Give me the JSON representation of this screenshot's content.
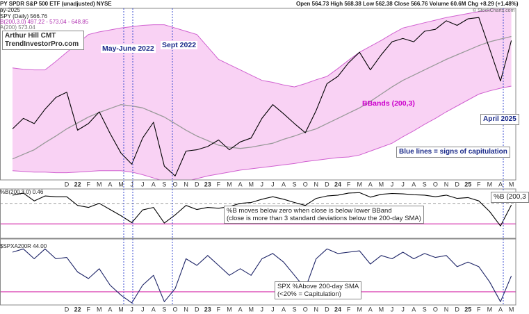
{
  "header": {
    "title": "PY SPDR S&P 500 ETF (unadjusted) NYSE",
    "date": "ay-2025",
    "quote": "Open 564.73 High 568.38 Low 562.38 Close 566.76 Volume 60.6M Chg +8.29 (+1.48%)",
    "credit": "© StockCharts.com"
  },
  "chart_data": [
    {
      "type": "line",
      "categories": [
        null,
        null,
        null,
        null,
        null,
        "D",
        "22",
        "F",
        "M",
        "A",
        "M",
        "J",
        "J",
        "A",
        "S",
        "O",
        "N",
        "D",
        "23",
        "F",
        "M",
        "A",
        "M",
        "J",
        "J",
        "A",
        "S",
        "O",
        "N",
        "D",
        "24",
        "F",
        "M",
        "A",
        "M",
        "J",
        "J",
        "A",
        "S",
        "O",
        "N",
        "D",
        "25",
        "F",
        "M",
        "A",
        "M"
      ],
      "ylim": [
        354,
        616
      ],
      "series": [
        {
          "name": "SPY (Daily) 566.76",
          "color": "#000000",
          "values": [
            432,
            448,
            440,
            462,
            480,
            488,
            430,
            440,
            458,
            425,
            395,
            378,
            418,
            442,
            375,
            360,
            398,
            400,
            405,
            415,
            400,
            412,
            418,
            448,
            469,
            455,
            440,
            426,
            460,
            501,
            512,
            533,
            549,
            522,
            545,
            565,
            570,
            565,
            581,
            584,
            597,
            590,
            600,
            602,
            554,
            505,
            566.76
          ]
        },
        {
          "name": "A(200) 573.04",
          "color": "#999999",
          "values": [
            386,
            393,
            400,
            411,
            421,
            432,
            441,
            450,
            457,
            463,
            469,
            467,
            464,
            457,
            450,
            440,
            430,
            421,
            414,
            407,
            404,
            402,
            404,
            407,
            410,
            416,
            421,
            427,
            432,
            440,
            448,
            456,
            464,
            474,
            485,
            496,
            506,
            514,
            522,
            530,
            538,
            545,
            552,
            559,
            565,
            569,
            573.04
          ]
        }
      ],
      "band": {
        "name": "B(200,3.0) 497.22 - 573.04 - 648.85",
        "color": "#d060d0",
        "fill": "#f9d2f4",
        "upper": [
          525,
          523,
          522,
          522,
          535,
          549,
          562,
          576,
          580,
          583,
          586,
          588,
          590,
          591,
          591,
          586,
          581,
          576,
          557,
          538,
          530,
          522,
          514,
          506,
          503,
          499,
          496,
          501,
          507,
          512,
          524,
          537,
          549,
          558,
          567,
          577,
          586,
          590,
          594,
          598,
          602,
          605,
          608,
          611,
          613,
          630,
          648.85
        ],
        "lower": [
          368,
          367,
          366,
          366,
          365,
          365,
          366,
          367,
          368,
          368,
          368,
          366,
          362,
          357,
          352,
          350,
          352,
          356,
          360,
          363,
          366,
          369,
          371,
          373,
          375,
          377,
          379,
          382,
          384,
          386,
          388,
          389,
          392,
          398,
          404,
          410,
          420,
          429,
          439,
          448,
          458,
          467,
          476,
          485,
          490,
          494,
          497.22
        ]
      },
      "annotations": [
        "Arthur Hill CMT",
        "TrendInvestorPro.com",
        "May-June 2022",
        "Sept 2022",
        "BBands (200,3)",
        "April 2025",
        "Blue lines = signs of capitulation"
      ]
    },
    {
      "type": "line",
      "title": "%B(200,3.0) 0.46",
      "ylim": [
        -0.35,
        0.85
      ],
      "series": [
        {
          "name": "%B (200,3",
          "color": "#000000",
          "values": [
            0.7,
            0.75,
            0.56,
            0.68,
            0.66,
            0.66,
            0.45,
            0.4,
            0.5,
            0.35,
            0.2,
            0.03,
            0.34,
            0.4,
            0.02,
            0.22,
            0.45,
            0.35,
            0.4,
            0.38,
            0.42,
            0.5,
            0.52,
            0.6,
            0.66,
            0.6,
            0.52,
            0.45,
            0.62,
            0.68,
            0.7,
            0.75,
            0.76,
            0.65,
            0.72,
            0.74,
            0.73,
            0.71,
            0.7,
            0.66,
            0.7,
            0.62,
            0.64,
            0.56,
            0.3,
            -0.05,
            0.46
          ]
        }
      ],
      "hlines": [
        {
          "value": 0.5,
          "color": "#999999"
        },
        {
          "value": 0,
          "color": "#cc0099"
        }
      ],
      "annotations": [
        "%B moves below zero when close is below lower BBand",
        "(close is more than 3 standard deviations below the 200-day SMA)"
      ]
    },
    {
      "type": "line",
      "title": "$SPXA200R 44.00",
      "categories": [
        null,
        null,
        null,
        null,
        null,
        "D",
        "22",
        "F",
        "M",
        "A",
        "M",
        "J",
        "J",
        "A",
        "S",
        "O",
        "N",
        "D",
        "23",
        "F",
        "M",
        "A",
        "M",
        "J",
        "J",
        "A",
        "S",
        "O",
        "N",
        "D",
        "24",
        "F",
        "M",
        "A",
        "M",
        "J",
        "J",
        "A",
        "S",
        "O",
        "N",
        "D",
        "25",
        "F",
        "M",
        "A",
        "M"
      ],
      "ylim": [
        0,
        100
      ],
      "series": [
        {
          "color": "#1c2366",
          "values": [
            80,
            85,
            70,
            85,
            70,
            72,
            50,
            40,
            55,
            30,
            15,
            3,
            30,
            45,
            5,
            25,
            70,
            60,
            75,
            60,
            45,
            55,
            45,
            70,
            78,
            65,
            45,
            25,
            70,
            85,
            78,
            80,
            82,
            62,
            75,
            70,
            80,
            70,
            78,
            72,
            75,
            58,
            65,
            58,
            35,
            5,
            44
          ]
        }
      ],
      "hlines": [
        {
          "value": 20,
          "color": "#cc0099"
        }
      ],
      "annotations": [
        "SPX %Above 200-day SMA",
        "(<20% = Capitulation)"
      ]
    }
  ]
}
